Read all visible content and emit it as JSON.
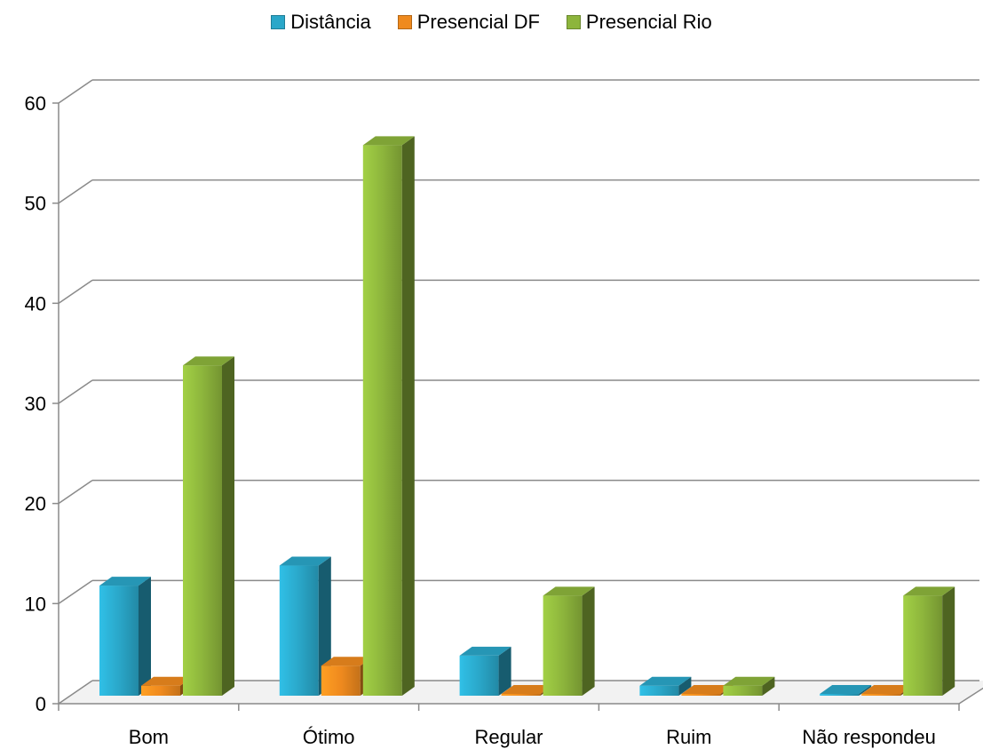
{
  "chart_data": {
    "type": "bar",
    "categories": [
      "Bom",
      "Ótimo",
      "Regular",
      "Ruim",
      "Não respondeu"
    ],
    "series": [
      {
        "name": "Distância",
        "values": [
          11,
          13,
          4,
          1,
          0
        ],
        "color": "#2aa7c9"
      },
      {
        "name": "Presencial DF",
        "values": [
          1,
          3,
          0,
          0,
          0
        ],
        "color": "#ef8a1e"
      },
      {
        "name": "Presencial Rio",
        "values": [
          33,
          55,
          10,
          1,
          10
        ],
        "color": "#8db53c"
      }
    ],
    "ylim": [
      0,
      60
    ],
    "yticks": [
      0,
      10,
      20,
      30,
      40,
      50,
      60
    ],
    "grid": true,
    "legend_position": "top",
    "title": "",
    "xlabel": "",
    "ylabel": ""
  }
}
